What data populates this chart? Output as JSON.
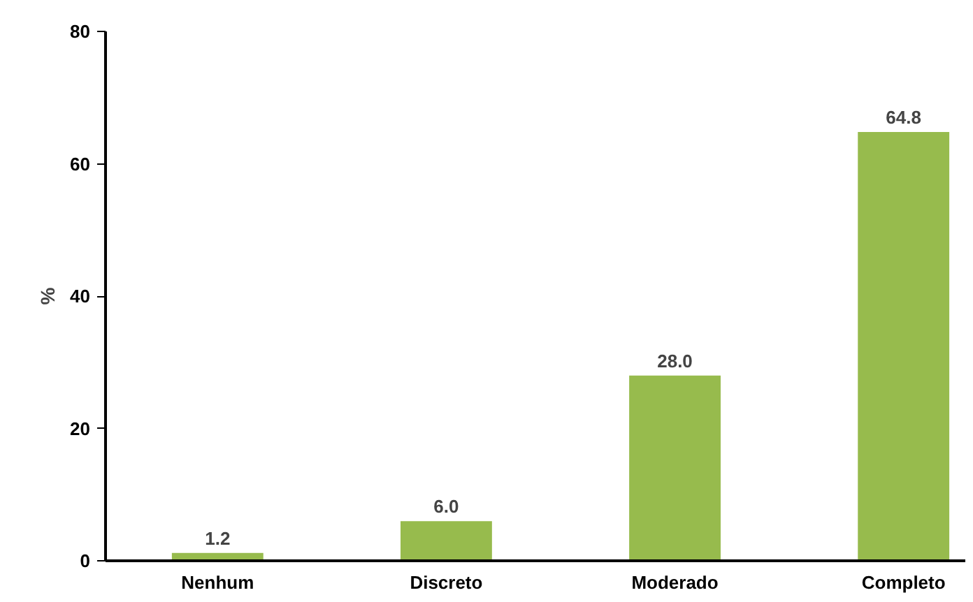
{
  "chart_data": {
    "type": "bar",
    "ylabel": "%",
    "categories": [
      "Nenhum",
      "Discreto",
      "Moderado",
      "Completo"
    ],
    "values": [
      1.2,
      6.0,
      28.0,
      64.8
    ],
    "value_labels": [
      "1.2",
      "6.0",
      "28.0",
      "64.8"
    ],
    "color": "#97bb4d",
    "ylim": [
      0,
      80
    ],
    "yticks": [
      0,
      20,
      40,
      60,
      80
    ],
    "grid": false
  }
}
